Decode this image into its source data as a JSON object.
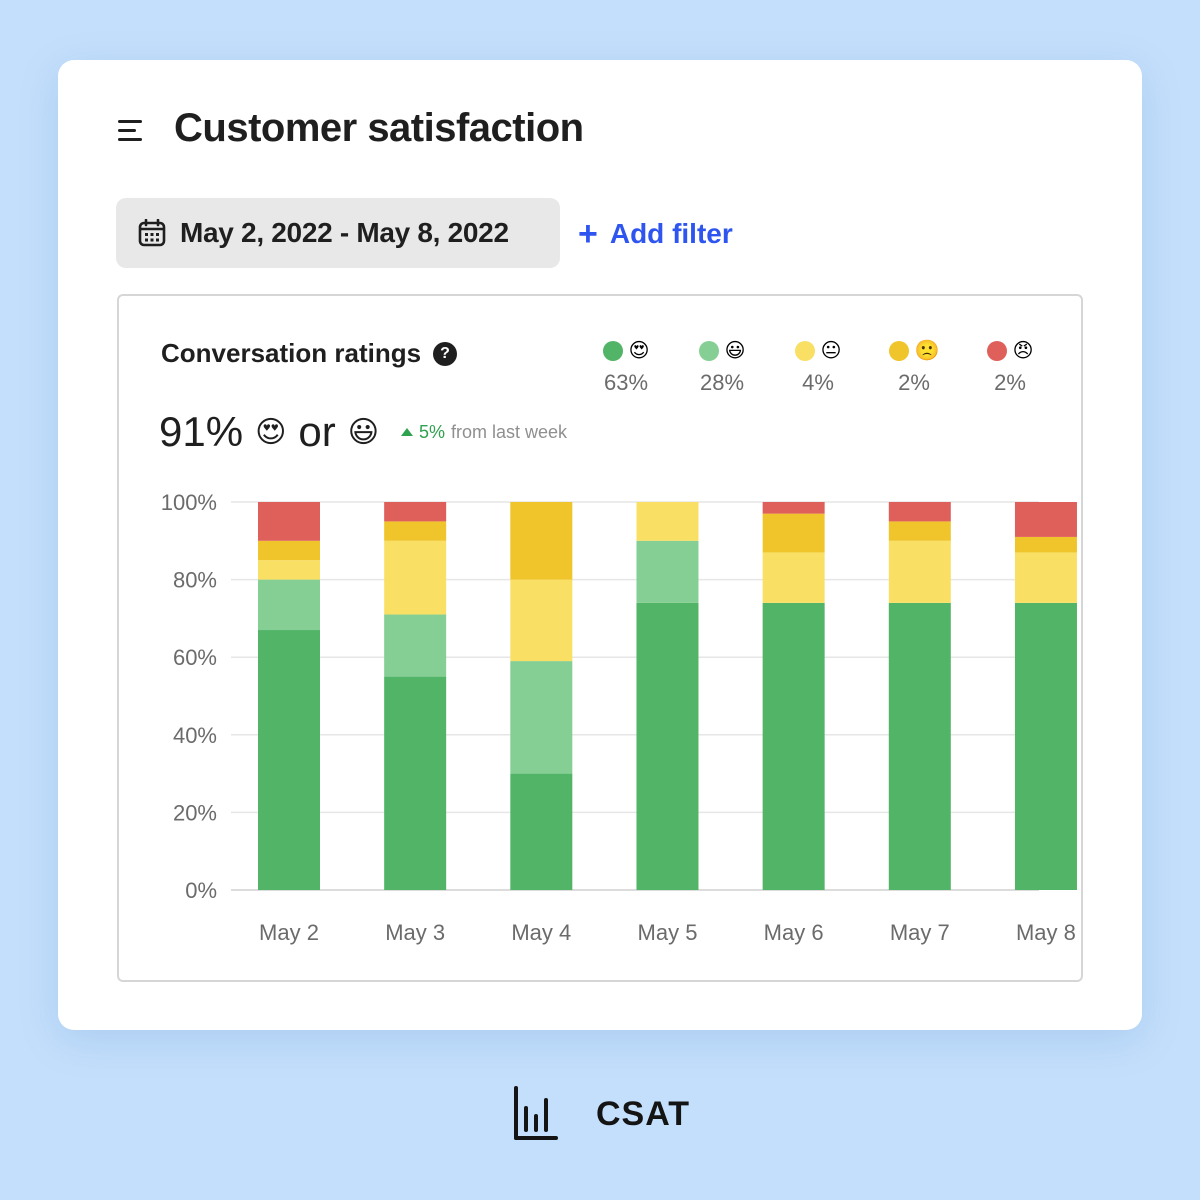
{
  "page": {
    "title": "Customer satisfaction",
    "date_range": "May 2, 2022 - May 8, 2022",
    "add_filter": "Add filter",
    "add_filter_plus": "+"
  },
  "panel": {
    "title": "Conversation ratings",
    "help": "?",
    "summary_value": "91%",
    "summary_or": "or",
    "summary_emoji_1": "😍",
    "summary_emoji_2": "😃",
    "trend_change": "5%",
    "trend_text": "from last week"
  },
  "legend": [
    {
      "color": "#52b466",
      "emoji": "😍",
      "pct": "63%"
    },
    {
      "color": "#86cf94",
      "emoji": "😃",
      "pct": "28%"
    },
    {
      "color": "#f9e065",
      "emoji": "😐",
      "pct": "4%"
    },
    {
      "color": "#efc52b",
      "emoji": "🙁",
      "pct": "2%"
    },
    {
      "color": "#df5f5a",
      "emoji": "😠",
      "pct": "2%"
    }
  ],
  "chart_data": {
    "type": "bar",
    "stacked": true,
    "title": "Conversation ratings",
    "categories": [
      "May 2",
      "May 3",
      "May 4",
      "May 5",
      "May 6",
      "May 7",
      "May 8"
    ],
    "ylim": [
      0,
      100
    ],
    "yticks": [
      "0%",
      "20%",
      "40%",
      "60%",
      "80%",
      "100%"
    ],
    "ytick_values": [
      0,
      20,
      40,
      60,
      80,
      100
    ],
    "series": [
      {
        "name": "😍",
        "color": "#52b466",
        "values": [
          67,
          55,
          30,
          74,
          74,
          74,
          74
        ]
      },
      {
        "name": "😃",
        "color": "#86cf94",
        "values": [
          13,
          16,
          29,
          16,
          0,
          0,
          0
        ]
      },
      {
        "name": "😐",
        "color": "#f9e065",
        "values": [
          5,
          19,
          21,
          10,
          13,
          16,
          13
        ]
      },
      {
        "name": "🙁",
        "color": "#efc52b",
        "values": [
          5,
          5,
          20,
          0,
          10,
          5,
          4
        ]
      },
      {
        "name": "😠",
        "color": "#df5f5a",
        "values": [
          10,
          5,
          0,
          0,
          3,
          5,
          9
        ]
      }
    ]
  },
  "footer": {
    "label": "CSAT"
  }
}
